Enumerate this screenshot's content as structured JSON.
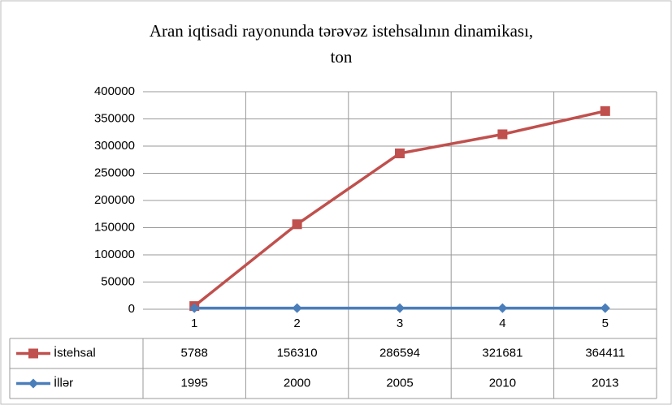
{
  "chart_data": {
    "type": "line",
    "title": [
      "Aran iqtisadi  rayonunda  tərəvəz istehsalının  dinamikası,",
      "ton"
    ],
    "categories": [
      "1",
      "2",
      "3",
      "4",
      "5"
    ],
    "series": [
      {
        "name": "İstehsal",
        "color": "#c0504d",
        "marker": "square",
        "values": [
          5788,
          156310,
          286594,
          321681,
          364411
        ]
      },
      {
        "name": "İllər",
        "color": "#4a7ebb",
        "marker": "diamond",
        "values": [
          1995,
          2000,
          2005,
          2010,
          2013
        ]
      }
    ],
    "ylim": [
      0,
      400000
    ],
    "yticks": [
      0,
      50000,
      100000,
      150000,
      200000,
      250000,
      300000,
      350000,
      400000
    ],
    "grid": true,
    "data_table": true
  }
}
